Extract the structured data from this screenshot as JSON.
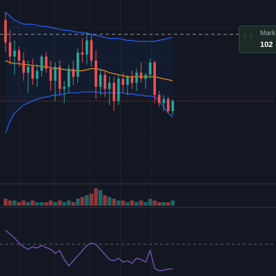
{
  "tooltip": {
    "title": "Mark",
    "value": "102",
    "grip_icon": "drag-handle-icon"
  },
  "colors": {
    "background": "#131722",
    "grid": "#1e222d",
    "up": "#26a69a",
    "down": "#ef5350",
    "bollinger_band": "#2962ff",
    "bollinger_basis": "#ff9800",
    "rsi_line": "#7e57c2",
    "mark_line": "#9598a1",
    "last_price_line": "#ef5350",
    "separator": "#2a2e39"
  },
  "chart_data": {
    "type": "candlestick",
    "title": "",
    "grid": true,
    "indicators": [
      "bollinger_bands",
      "volume",
      "rsi"
    ],
    "price_ylim": [
      94.65,
      103.6
    ],
    "mark_price": 101.9,
    "last_price": 98.6,
    "candles": [
      {
        "o": 102.6,
        "h": 103.0,
        "l": 101.0,
        "c": 101.5
      },
      {
        "o": 101.5,
        "h": 102.1,
        "l": 100.4,
        "c": 100.8
      },
      {
        "o": 100.8,
        "h": 101.6,
        "l": 99.9,
        "c": 101.1
      },
      {
        "o": 101.1,
        "h": 101.3,
        "l": 100.3,
        "c": 100.6
      },
      {
        "o": 100.6,
        "h": 101.0,
        "l": 99.6,
        "c": 100.0
      },
      {
        "o": 100.0,
        "h": 100.6,
        "l": 99.0,
        "c": 100.3
      },
      {
        "o": 100.3,
        "h": 100.7,
        "l": 99.4,
        "c": 99.7
      },
      {
        "o": 99.7,
        "h": 100.4,
        "l": 99.3,
        "c": 100.1
      },
      {
        "o": 100.1,
        "h": 100.9,
        "l": 99.8,
        "c": 100.8
      },
      {
        "o": 100.8,
        "h": 101.0,
        "l": 100.0,
        "c": 100.2
      },
      {
        "o": 100.2,
        "h": 100.6,
        "l": 99.1,
        "c": 99.6
      },
      {
        "o": 99.6,
        "h": 100.5,
        "l": 98.6,
        "c": 100.3
      },
      {
        "o": 100.3,
        "h": 100.6,
        "l": 98.9,
        "c": 99.2
      },
      {
        "o": 99.2,
        "h": 99.6,
        "l": 98.5,
        "c": 99.3
      },
      {
        "o": 99.3,
        "h": 100.4,
        "l": 99.0,
        "c": 100.2
      },
      {
        "o": 100.2,
        "h": 100.6,
        "l": 99.4,
        "c": 99.8
      },
      {
        "o": 99.8,
        "h": 101.2,
        "l": 99.5,
        "c": 101.0
      },
      {
        "o": 101.0,
        "h": 101.7,
        "l": 100.5,
        "c": 100.9
      },
      {
        "o": 100.9,
        "h": 102.0,
        "l": 100.4,
        "c": 101.6
      },
      {
        "o": 101.6,
        "h": 101.9,
        "l": 100.3,
        "c": 100.6
      },
      {
        "o": 100.6,
        "h": 101.1,
        "l": 98.7,
        "c": 99.3
      },
      {
        "o": 99.3,
        "h": 100.2,
        "l": 98.9,
        "c": 99.9
      },
      {
        "o": 99.9,
        "h": 100.1,
        "l": 98.8,
        "c": 99.2
      },
      {
        "o": 99.2,
        "h": 99.8,
        "l": 98.4,
        "c": 99.5
      },
      {
        "o": 99.5,
        "h": 99.8,
        "l": 98.1,
        "c": 98.6
      },
      {
        "o": 98.6,
        "h": 99.9,
        "l": 98.4,
        "c": 99.7
      },
      {
        "o": 99.7,
        "h": 100.0,
        "l": 99.0,
        "c": 99.4
      },
      {
        "o": 99.4,
        "h": 99.9,
        "l": 98.9,
        "c": 99.8
      },
      {
        "o": 99.8,
        "h": 100.1,
        "l": 99.2,
        "c": 99.5
      },
      {
        "o": 99.5,
        "h": 100.2,
        "l": 99.1,
        "c": 100.0
      },
      {
        "o": 100.0,
        "h": 100.5,
        "l": 99.5,
        "c": 99.7
      },
      {
        "o": 99.7,
        "h": 100.0,
        "l": 99.2,
        "c": 99.9
      },
      {
        "o": 99.9,
        "h": 100.7,
        "l": 99.7,
        "c": 100.5
      },
      {
        "o": 100.5,
        "h": 100.6,
        "l": 98.5,
        "c": 98.9
      },
      {
        "o": 98.9,
        "h": 99.1,
        "l": 98.3,
        "c": 98.5
      },
      {
        "o": 98.5,
        "h": 98.9,
        "l": 98.1,
        "c": 98.7
      },
      {
        "o": 98.7,
        "h": 98.8,
        "l": 98.0,
        "c": 98.1
      },
      {
        "o": 98.1,
        "h": 98.7,
        "l": 97.9,
        "c": 98.6
      }
    ],
    "bollinger": {
      "upper": [
        103.0,
        102.8,
        102.6,
        102.5,
        102.4,
        102.4,
        102.4,
        102.35,
        102.3,
        102.3,
        102.25,
        102.2,
        102.15,
        102.1,
        102.1,
        102.05,
        102.0,
        102.0,
        101.95,
        101.9,
        101.85,
        101.8,
        101.75,
        101.7,
        101.7,
        101.7,
        101.65,
        101.6,
        101.6,
        101.55,
        101.55,
        101.55,
        101.55,
        101.55,
        101.6,
        101.65,
        101.7,
        101.75
      ],
      "basis": [
        100.6,
        100.5,
        100.45,
        100.45,
        100.4,
        100.4,
        100.35,
        100.35,
        100.3,
        100.3,
        100.25,
        100.2,
        100.2,
        100.15,
        100.15,
        100.1,
        100.1,
        100.1,
        100.15,
        100.2,
        100.2,
        100.15,
        100.1,
        100.0,
        99.95,
        99.9,
        99.85,
        99.8,
        99.8,
        99.8,
        99.8,
        99.8,
        99.8,
        99.8,
        99.75,
        99.7,
        99.65,
        99.6
      ],
      "lower": [
        97.0,
        97.6,
        98.0,
        98.2,
        98.4,
        98.5,
        98.6,
        98.7,
        98.75,
        98.8,
        98.85,
        98.9,
        98.9,
        98.95,
        99.0,
        99.0,
        99.0,
        99.05,
        99.05,
        99.05,
        99.05,
        99.0,
        99.0,
        99.0,
        99.0,
        99.0,
        99.0,
        98.95,
        98.95,
        98.9,
        98.9,
        98.85,
        98.85,
        98.8,
        98.6,
        98.3,
        98.0,
        97.8
      ]
    },
    "volume_ylim": [
      0,
      12
    ],
    "volume": [
      4,
      3,
      3,
      2,
      3,
      2,
      3,
      2,
      2,
      2,
      3,
      2,
      3,
      2,
      3,
      2,
      4,
      5,
      6,
      7,
      10,
      9,
      6,
      5,
      4,
      3,
      3,
      2,
      3,
      2,
      3,
      2,
      4,
      3,
      2,
      2,
      2,
      3
    ],
    "rsi_ylim": [
      0,
      100
    ],
    "rsi_midline": 50,
    "rsi": [
      72,
      66,
      60,
      52,
      46,
      42,
      46,
      44,
      48,
      45,
      42,
      36,
      40,
      26,
      16,
      24,
      32,
      40,
      48,
      52,
      50,
      42,
      34,
      26,
      24,
      28,
      22,
      24,
      20,
      28,
      26,
      22,
      40,
      12,
      8,
      9,
      11,
      11
    ]
  }
}
